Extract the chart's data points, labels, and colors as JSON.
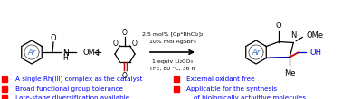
{
  "figsize": [
    3.78,
    1.1
  ],
  "dpi": 100,
  "bg_color": "#ffffff",
  "reaction_conditions": [
    "2.5 mol% [Cp*RhCl₂]₂",
    "10% mol AgSbF₆",
    "1 equiv Li₂CO₃",
    "TFE, 80 °C, 36 h"
  ],
  "bullet_left": [
    "A single Rh(III) complex as the catalyst",
    "Broad functional group tolerance",
    "Late-stage diversification available"
  ],
  "bullet_right": [
    "External oxidant free",
    "Applicable for the synthesis",
    "of biologically activitive molecules"
  ],
  "bullet_color": "#ff0000",
  "text_color": "#0000ff",
  "text_color_conditions": "#000000",
  "bullet_size": 4.5,
  "label_fontsize": 5.2,
  "arrow_color": "#000000"
}
